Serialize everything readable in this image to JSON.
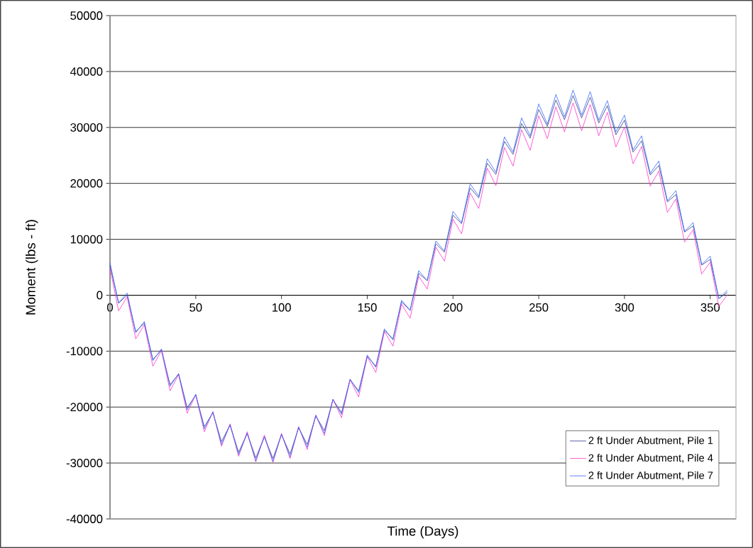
{
  "chart_data": {
    "type": "line",
    "xlabel": "Time (Days)",
    "ylabel": "Moment (lbs - ft)",
    "x": [
      0,
      5,
      10,
      15,
      20,
      25,
      30,
      35,
      40,
      45,
      50,
      55,
      60,
      65,
      70,
      75,
      80,
      85,
      90,
      95,
      100,
      105,
      110,
      115,
      120,
      125,
      130,
      135,
      140,
      145,
      150,
      155,
      160,
      165,
      170,
      175,
      180,
      185,
      190,
      195,
      200,
      205,
      210,
      215,
      220,
      225,
      230,
      235,
      240,
      245,
      250,
      255,
      260,
      265,
      270,
      275,
      280,
      285,
      290,
      295,
      300,
      305,
      310,
      315,
      320,
      325,
      330,
      335,
      340,
      345,
      350,
      355,
      360
    ],
    "series": [
      {
        "name": "2 ft Under Abutment, Pile 1",
        "color": "#2e3a87",
        "values": [
          5300,
          -1400,
          0,
          -6500,
          -5000,
          -11500,
          -9800,
          -16000,
          -14100,
          -20100,
          -17900,
          -23500,
          -21000,
          -26200,
          -23200,
          -28100,
          -24700,
          -29100,
          -25300,
          -29200,
          -24900,
          -28400,
          -23700,
          -26700,
          -21600,
          -24200,
          -18700,
          -21000,
          -15100,
          -17100,
          -10900,
          -12700,
          -6300,
          -7800,
          -1200,
          -2700,
          3900,
          2600,
          9200,
          7700,
          14300,
          12800,
          19200,
          17400,
          23600,
          21600,
          27500,
          25200,
          30700,
          28100,
          33200,
          30200,
          34900,
          31400,
          35700,
          31700,
          35400,
          30800,
          33900,
          28700,
          31300,
          25600,
          27600,
          21500,
          23200,
          16700,
          18000,
          11300,
          12400,
          5400,
          6400,
          -600,
          500
        ]
      },
      {
        "name": "2 ft Under Abutment, Pile 4",
        "color": "#ff33cc",
        "values": [
          4800,
          -2800,
          -300,
          -7800,
          -5300,
          -12700,
          -9900,
          -17100,
          -14200,
          -21100,
          -17800,
          -24400,
          -20800,
          -27000,
          -23000,
          -28800,
          -24400,
          -29800,
          -25000,
          -29900,
          -24700,
          -29200,
          -23500,
          -27600,
          -21400,
          -25100,
          -18600,
          -21900,
          -15100,
          -18200,
          -11000,
          -13800,
          -6500,
          -9100,
          -1600,
          -4100,
          3400,
          1100,
          8600,
          6100,
          13600,
          11000,
          18300,
          15500,
          22700,
          19600,
          26400,
          23100,
          29600,
          25900,
          32100,
          28000,
          33700,
          29200,
          34400,
          29400,
          34100,
          28500,
          32700,
          26500,
          30100,
          23500,
          26600,
          19500,
          22200,
          14800,
          17200,
          9500,
          11700,
          3800,
          5900,
          -2000,
          100
        ]
      },
      {
        "name": "2 ft Under Abutment, Pile 7",
        "color": "#3366ff",
        "values": [
          5800,
          -1400,
          400,
          -6700,
          -4700,
          -11700,
          -9600,
          -16300,
          -14000,
          -20500,
          -17700,
          -23900,
          -20900,
          -26700,
          -23200,
          -28500,
          -24700,
          -29600,
          -25300,
          -29700,
          -24900,
          -28900,
          -23600,
          -27200,
          -21500,
          -24700,
          -18600,
          -21300,
          -15000,
          -17400,
          -10700,
          -12900,
          -6000,
          -8000,
          -900,
          -2700,
          4400,
          2600,
          9700,
          7900,
          15000,
          13000,
          19900,
          17700,
          24400,
          22000,
          28300,
          25600,
          31700,
          28500,
          34200,
          30600,
          35900,
          31900,
          36700,
          32200,
          36400,
          31300,
          34800,
          29200,
          32200,
          26000,
          28500,
          21800,
          24000,
          16900,
          18700,
          11400,
          13000,
          5500,
          7000,
          -600,
          900
        ]
      }
    ],
    "xlim": [
      0,
      365
    ],
    "xticks": [
      0,
      50,
      100,
      150,
      200,
      250,
      300,
      350
    ],
    "ylim": [
      -40000,
      50000
    ],
    "yticks": [
      -40000,
      -30000,
      -20000,
      -10000,
      0,
      10000,
      20000,
      30000,
      40000,
      50000
    ],
    "grid": "y",
    "legend": "bottom right"
  }
}
